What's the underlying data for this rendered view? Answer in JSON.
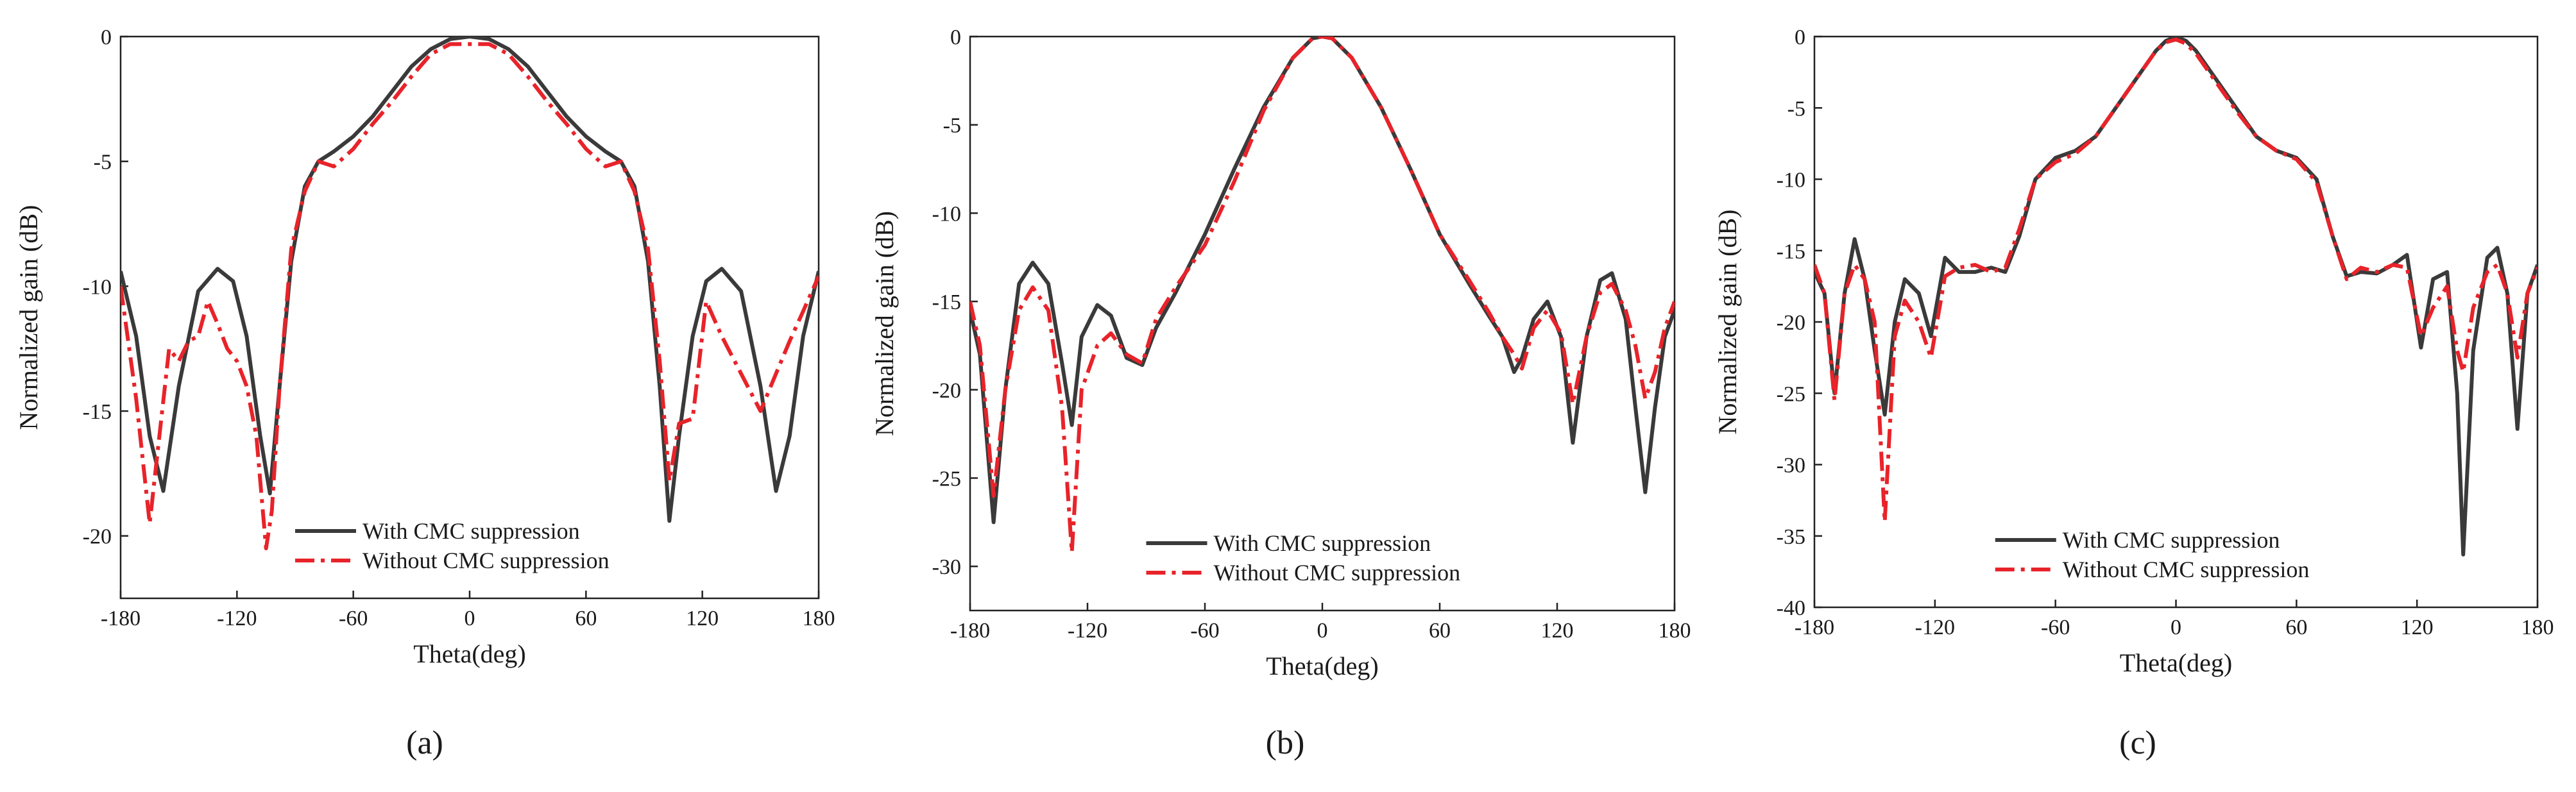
{
  "figure": {
    "panel_labels": [
      "(a)",
      "(b)",
      "(c)"
    ]
  },
  "colors": {
    "with_series": "#3a3a3a",
    "without_series": "#e8232a",
    "axis": "#222222"
  },
  "chart_data": [
    {
      "type": "line",
      "panel": "(a)",
      "title": "",
      "xlabel": "Theta(deg)",
      "ylabel": "Normalized gain (dB)",
      "xlim": [
        -180,
        180
      ],
      "ylim": [
        -22.5,
        0
      ],
      "xticks": [
        -180,
        -120,
        -60,
        0,
        60,
        120,
        180
      ],
      "yticks": [
        0,
        -5,
        -10,
        -15,
        -20
      ],
      "legend_position": "bottom-center",
      "series": [
        {
          "name": "With CMC suppression",
          "style": "solid",
          "x": [
            -180,
            -172,
            -165,
            -158,
            -150,
            -140,
            -130,
            -122,
            -115,
            -108,
            -103,
            -98,
            -92,
            -85,
            -78,
            -70,
            -60,
            -50,
            -40,
            -30,
            -20,
            -10,
            0,
            10,
            20,
            30,
            40,
            50,
            60,
            70,
            78,
            85,
            92,
            98,
            103,
            108,
            115,
            122,
            130,
            140,
            150,
            158,
            165,
            172,
            180
          ],
          "y": [
            -9.4,
            -12,
            -16,
            -18.2,
            -14,
            -10.2,
            -9.3,
            -9.8,
            -12,
            -16,
            -18.3,
            -14,
            -9,
            -6,
            -5,
            -4.6,
            -4,
            -3.2,
            -2.2,
            -1.2,
            -0.5,
            -0.1,
            0,
            -0.1,
            -0.5,
            -1.2,
            -2.2,
            -3.2,
            -4,
            -4.6,
            -5,
            -6,
            -9,
            -14,
            -19.4,
            -16,
            -12,
            -9.8,
            -9.3,
            -10.2,
            -14,
            -18.2,
            -16,
            -12,
            -9.4
          ]
        },
        {
          "name": "Without CMC suppression",
          "style": "dashdot",
          "x": [
            -180,
            -172,
            -165,
            -160,
            -155,
            -150,
            -145,
            -140,
            -135,
            -130,
            -125,
            -120,
            -115,
            -110,
            -105,
            -102,
            -98,
            -92,
            -85,
            -78,
            -70,
            -60,
            -50,
            -40,
            -30,
            -20,
            -10,
            0,
            10,
            20,
            30,
            40,
            50,
            60,
            70,
            78,
            85,
            92,
            98,
            103,
            108,
            115,
            122,
            130,
            140,
            150,
            158,
            165,
            172,
            180
          ],
          "y": [
            -10,
            -14.5,
            -19.5,
            -16,
            -12.5,
            -13,
            -12.2,
            -12,
            -10.6,
            -11.5,
            -12.5,
            -13,
            -14,
            -16,
            -20.5,
            -19,
            -14,
            -8.5,
            -6.2,
            -5,
            -5.2,
            -4.5,
            -3.5,
            -2.6,
            -1.6,
            -0.7,
            -0.3,
            -0.3,
            -0.3,
            -0.7,
            -1.6,
            -2.6,
            -3.5,
            -4.5,
            -5.2,
            -5,
            -6.2,
            -8.5,
            -13,
            -17.8,
            -15.5,
            -15.3,
            -10.6,
            -12,
            -13.5,
            -15,
            -13.5,
            -12.2,
            -11,
            -9.6
          ]
        }
      ]
    },
    {
      "type": "line",
      "panel": "(b)",
      "title": "",
      "xlabel": "Theta(deg)",
      "ylabel": "Normalized gain (dB)",
      "xlim": [
        -180,
        180
      ],
      "ylim": [
        -32.5,
        0
      ],
      "xticks": [
        -180,
        -120,
        -60,
        0,
        60,
        120,
        180
      ],
      "yticks": [
        0,
        -5,
        -10,
        -15,
        -20,
        -25,
        -30
      ],
      "legend_position": "bottom-center",
      "series": [
        {
          "name": "With CMC suppression",
          "style": "solid",
          "x": [
            -180,
            -175,
            -168,
            -162,
            -155,
            -148,
            -140,
            -133,
            -128,
            -123,
            -115,
            -108,
            -100,
            -92,
            -85,
            -75,
            -60,
            -45,
            -30,
            -15,
            -5,
            0,
            5,
            15,
            30,
            45,
            60,
            75,
            85,
            92,
            98,
            102,
            108,
            115,
            122,
            128,
            135,
            142,
            148,
            155,
            160,
            165,
            170,
            175,
            180
          ],
          "y": [
            -15.5,
            -18,
            -27.5,
            -20,
            -14,
            -12.8,
            -14,
            -18.5,
            -22,
            -17,
            -15.2,
            -15.8,
            -18.2,
            -18.6,
            -16.5,
            -14.5,
            -11.2,
            -7.5,
            -4,
            -1.2,
            -0.1,
            0,
            -0.1,
            -1.2,
            -4,
            -7.5,
            -11.2,
            -14,
            -15.8,
            -17,
            -19,
            -18.2,
            -16,
            -15,
            -17,
            -23,
            -17,
            -13.8,
            -13.4,
            -16,
            -21,
            -25.8,
            -21,
            -17,
            -15.5
          ]
        },
        {
          "name": "Without CMC suppression",
          "style": "dashdot",
          "x": [
            -180,
            -175,
            -168,
            -162,
            -155,
            -148,
            -140,
            -133,
            -128,
            -123,
            -115,
            -108,
            -100,
            -92,
            -85,
            -75,
            -60,
            -45,
            -30,
            -15,
            -5,
            0,
            5,
            15,
            30,
            45,
            60,
            75,
            85,
            92,
            98,
            102,
            108,
            115,
            122,
            128,
            135,
            142,
            148,
            155,
            160,
            165,
            170,
            175,
            180
          ],
          "y": [
            -15,
            -17.5,
            -26,
            -20,
            -15.5,
            -14.2,
            -15.5,
            -21,
            -29.2,
            -20,
            -17.5,
            -16.8,
            -18,
            -18.5,
            -16,
            -14.2,
            -11.8,
            -8.2,
            -4.2,
            -1.2,
            -0.1,
            0,
            -0.1,
            -1.2,
            -4,
            -7.5,
            -11.2,
            -13.8,
            -15.6,
            -17,
            -18,
            -18.8,
            -16.5,
            -15.5,
            -16.8,
            -20.8,
            -17,
            -14.5,
            -14,
            -15.5,
            -17.5,
            -20.5,
            -19,
            -16.5,
            -15
          ]
        }
      ]
    },
    {
      "type": "line",
      "panel": "(c)",
      "title": "",
      "xlabel": "Theta(deg)",
      "ylabel": "Normalized gain (dB)",
      "xlim": [
        -180,
        180
      ],
      "ylim": [
        -40,
        0
      ],
      "xticks": [
        -180,
        -120,
        -60,
        0,
        60,
        120,
        180
      ],
      "yticks": [
        0,
        -5,
        -10,
        -15,
        -20,
        -25,
        -30,
        -35,
        -40
      ],
      "legend_position": "bottom-center",
      "series": [
        {
          "name": "With CMC suppression",
          "style": "solid",
          "x": [
            -180,
            -175,
            -170,
            -165,
            -160,
            -155,
            -150,
            -145,
            -140,
            -135,
            -128,
            -122,
            -115,
            -108,
            -100,
            -92,
            -85,
            -78,
            -70,
            -60,
            -50,
            -40,
            -30,
            -20,
            -10,
            -5,
            0,
            5,
            10,
            20,
            30,
            40,
            50,
            60,
            70,
            78,
            85,
            92,
            100,
            108,
            115,
            122,
            128,
            135,
            140,
            143,
            148,
            155,
            160,
            165,
            170,
            175,
            180
          ],
          "y": [
            -16.5,
            -18,
            -25,
            -18,
            -14.2,
            -17,
            -22,
            -26.5,
            -20,
            -17,
            -18,
            -21,
            -15.5,
            -16.5,
            -16.5,
            -16.2,
            -16.5,
            -14,
            -10,
            -8.5,
            -8,
            -7,
            -5,
            -3,
            -1,
            -0.3,
            0,
            -0.3,
            -1,
            -3,
            -5,
            -7,
            -8,
            -8.5,
            -10,
            -14,
            -16.8,
            -16.5,
            -16.6,
            -16,
            -15.3,
            -21.8,
            -17,
            -16.5,
            -25,
            -36.3,
            -22,
            -15.5,
            -14.8,
            -18,
            -27.5,
            -18,
            -16
          ]
        },
        {
          "name": "Without CMC suppression",
          "style": "dashdot",
          "x": [
            -180,
            -175,
            -170,
            -165,
            -160,
            -155,
            -150,
            -145,
            -140,
            -135,
            -128,
            -122,
            -115,
            -108,
            -100,
            -92,
            -85,
            -78,
            -70,
            -60,
            -50,
            -40,
            -30,
            -20,
            -10,
            -5,
            0,
            5,
            10,
            20,
            30,
            40,
            50,
            60,
            70,
            78,
            85,
            92,
            100,
            108,
            115,
            122,
            128,
            135,
            140,
            143,
            148,
            155,
            160,
            165,
            170,
            175,
            180
          ],
          "y": [
            -16,
            -18,
            -25.5,
            -18,
            -16,
            -17,
            -20,
            -34,
            -21,
            -18.5,
            -20,
            -22.5,
            -16.8,
            -16.2,
            -16,
            -16.5,
            -16.2,
            -13.5,
            -10,
            -8.8,
            -8.2,
            -7,
            -5,
            -3,
            -1,
            -0.4,
            -0.2,
            -0.5,
            -1.2,
            -3.2,
            -5.2,
            -7,
            -8,
            -8.6,
            -10.2,
            -14,
            -17,
            -16.2,
            -16.5,
            -16,
            -16.2,
            -21,
            -19,
            -17.5,
            -22,
            -23.5,
            -19,
            -16.5,
            -16,
            -18,
            -22.5,
            -18,
            -16.2
          ]
        }
      ]
    }
  ]
}
